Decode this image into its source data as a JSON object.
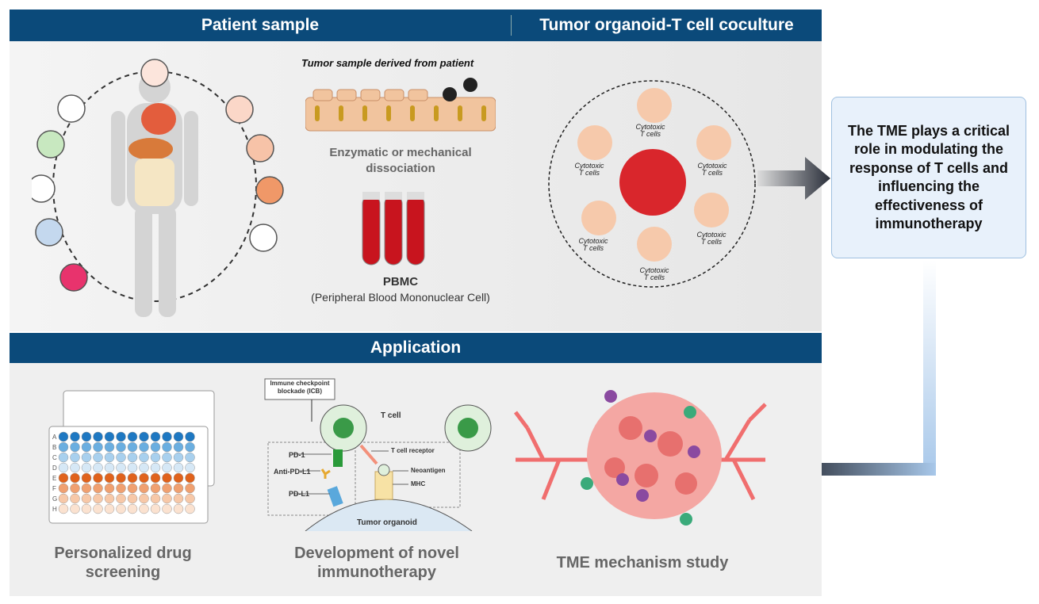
{
  "headers": {
    "patient_sample": "Patient sample",
    "coculture": "Tumor organoid-T cell coculture",
    "application": "Application"
  },
  "patient": {
    "tumor_sample": "Tumor sample derived from patient",
    "dissociation": "Enzymatic or mechanical dissociation",
    "pbmc": "PBMC",
    "pbmc_full": "(Peripheral Blood Mononuclear Cell)"
  },
  "coculture": {
    "cell_label_line1": "Cytotoxic",
    "cell_label_line2": "T cells"
  },
  "tme_box": "The TME plays a critical role in modulating the response of T cells and influencing the effectiveness of immunotherapy",
  "applications": {
    "drug_screening": "Personalized drug screening",
    "plate_rows": [
      "A",
      "B",
      "C",
      "D",
      "E",
      "F",
      "G",
      "H"
    ],
    "immunotherapy": "Development of novel immunotherapy",
    "tme_study": "TME mechanism study"
  },
  "icb": {
    "box": "Immune checkpoint blockade (ICB)",
    "t_cell": "T cell",
    "pd1": "PD-1",
    "anti_pdl1": "Anti-PD-L1",
    "pdl1": "PD-L1",
    "tcr": "T cell receptor",
    "neoantigen": "Neoantigen",
    "mhc": "MHC",
    "tumor_organoid": "Tumor organoid"
  },
  "colors": {
    "header": "#0b4a7a",
    "tme_box_bg": "#e8f1fb",
    "tme_box_border": "#9fc0e0",
    "arrow": "#2a2f3a"
  }
}
